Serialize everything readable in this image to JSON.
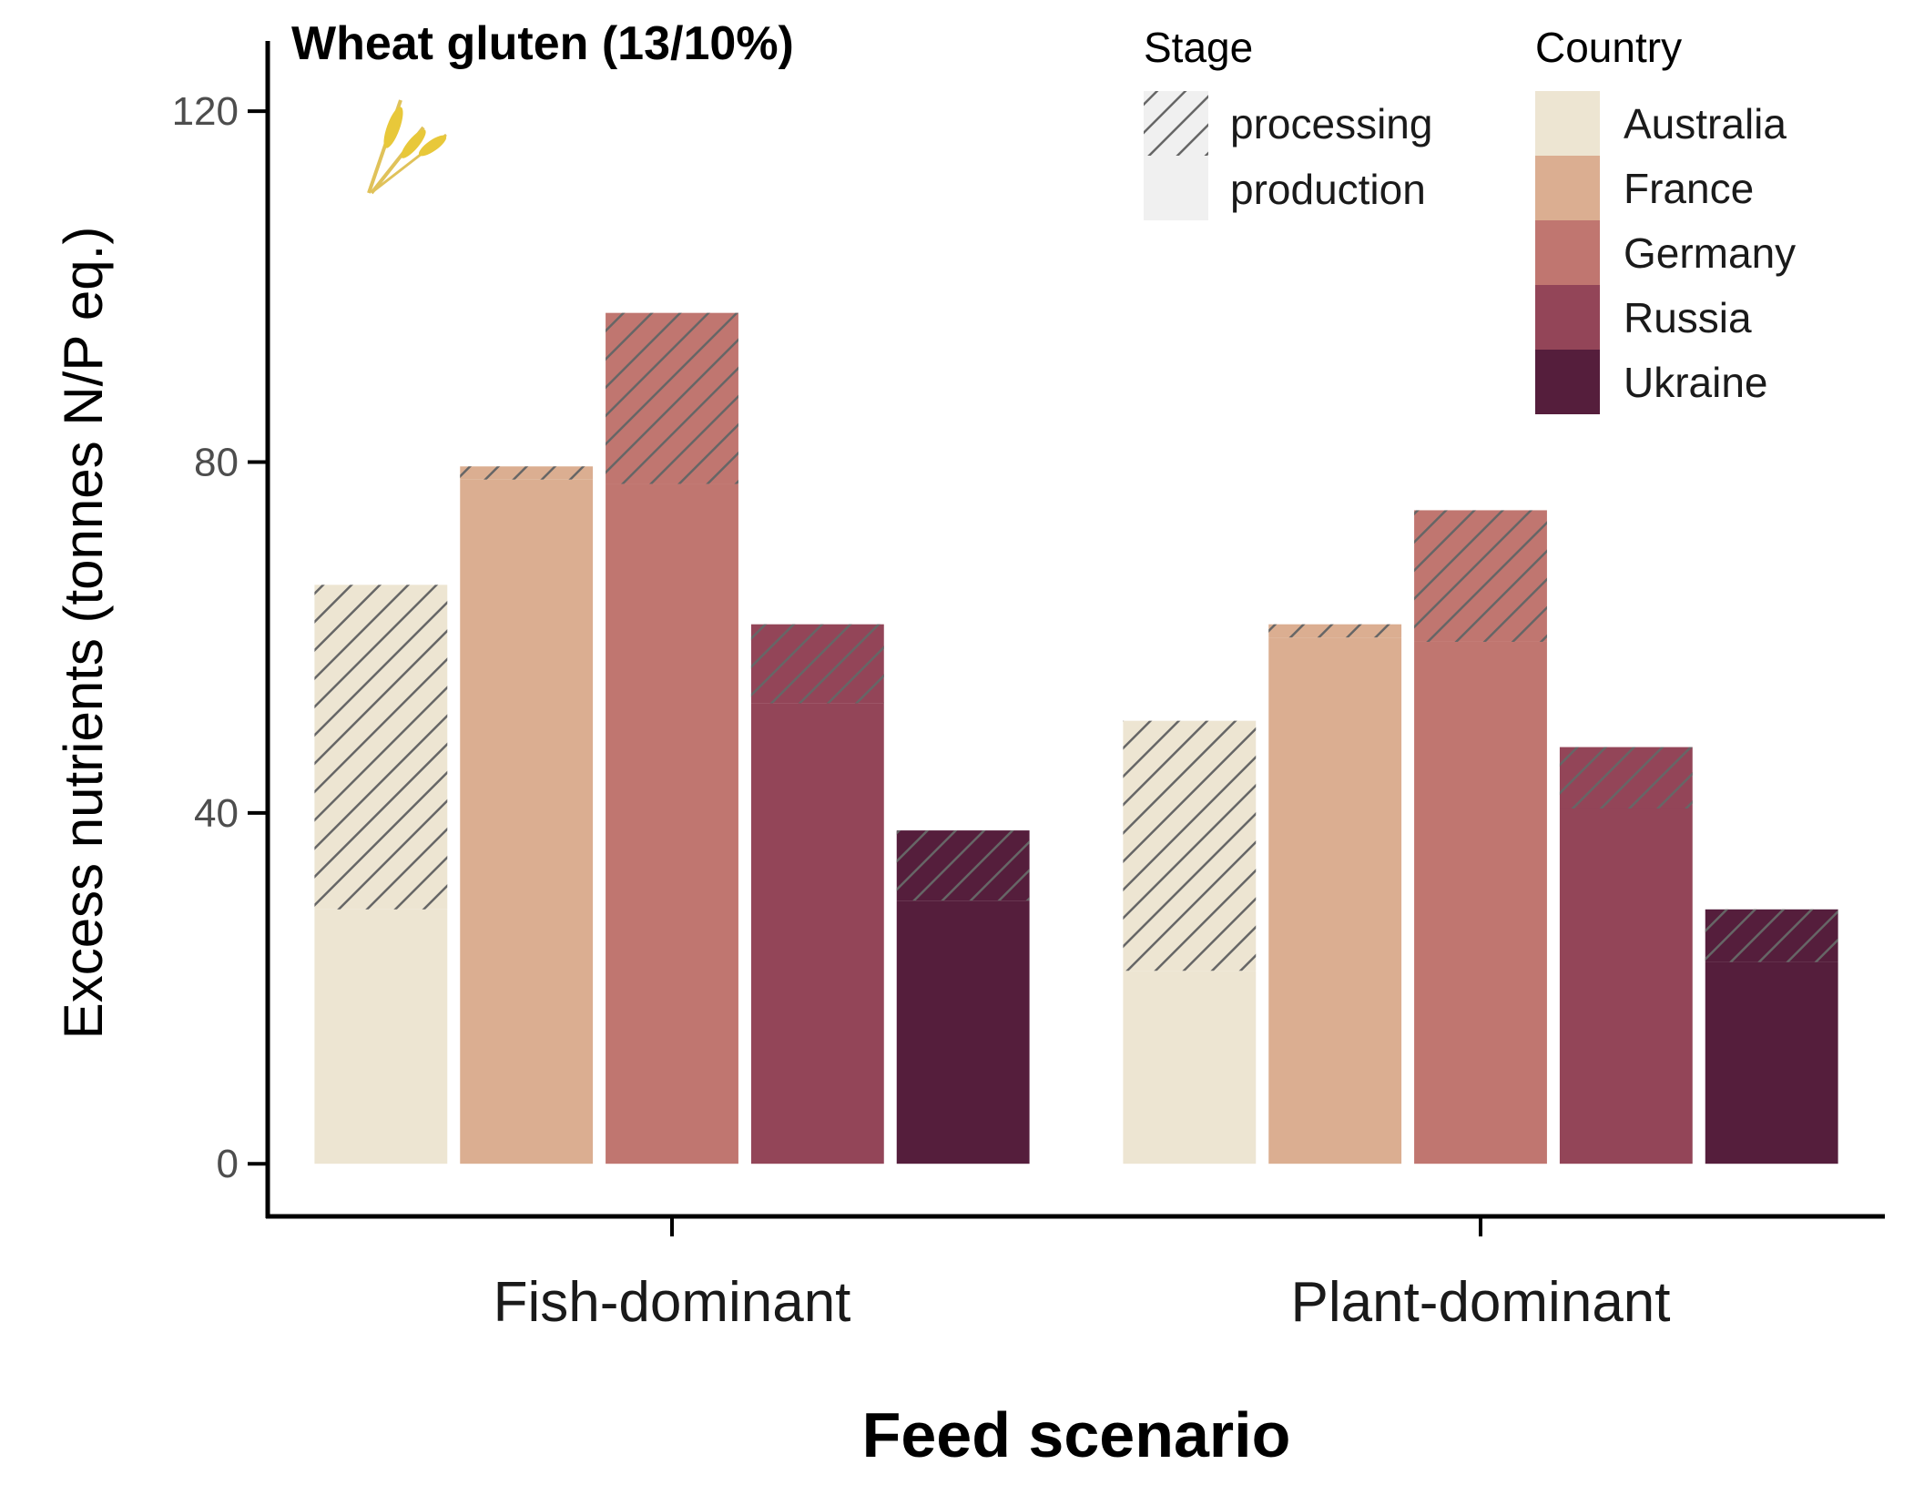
{
  "chart_data": {
    "type": "bar",
    "title": "Wheat gluten (13/10%)",
    "xlabel": "Feed scenario",
    "ylabel": "Excess nutrients (tonnes N/P eq.)",
    "ylim": [
      -6,
      128
    ],
    "yticks": [
      0,
      40,
      80,
      120
    ],
    "categories": [
      "Fish-dominant",
      "Plant-dominant"
    ],
    "stacked": true,
    "stack_order": [
      "production",
      "processing"
    ],
    "series": [
      {
        "name": "Australia",
        "color": "#ede5d2",
        "production": [
          29,
          22
        ],
        "processing": [
          37,
          28.5
        ]
      },
      {
        "name": "France",
        "color": "#dbae91",
        "production": [
          78,
          60
        ],
        "processing": [
          1.5,
          1.5
        ]
      },
      {
        "name": "Germany",
        "color": "#c07670",
        "production": [
          77.5,
          59.5
        ],
        "processing": [
          19.5,
          15
        ]
      },
      {
        "name": "Russia",
        "color": "#934558",
        "production": [
          52.5,
          40.5
        ],
        "processing": [
          9,
          7
        ]
      },
      {
        "name": "Ukraine",
        "color": "#551e3c",
        "production": [
          30,
          23
        ],
        "processing": [
          8,
          6
        ]
      }
    ],
    "grid": false,
    "legend": {
      "placement": "top-right",
      "stage_title": "Stage",
      "stage_items": [
        {
          "label": "processing",
          "pattern": "hatch"
        },
        {
          "label": "production",
          "pattern": "none"
        }
      ],
      "country_title": "Country",
      "country_items": [
        "Australia",
        "France",
        "Germany",
        "Russia",
        "Ukraine"
      ]
    },
    "icon": "wheat-icon"
  }
}
